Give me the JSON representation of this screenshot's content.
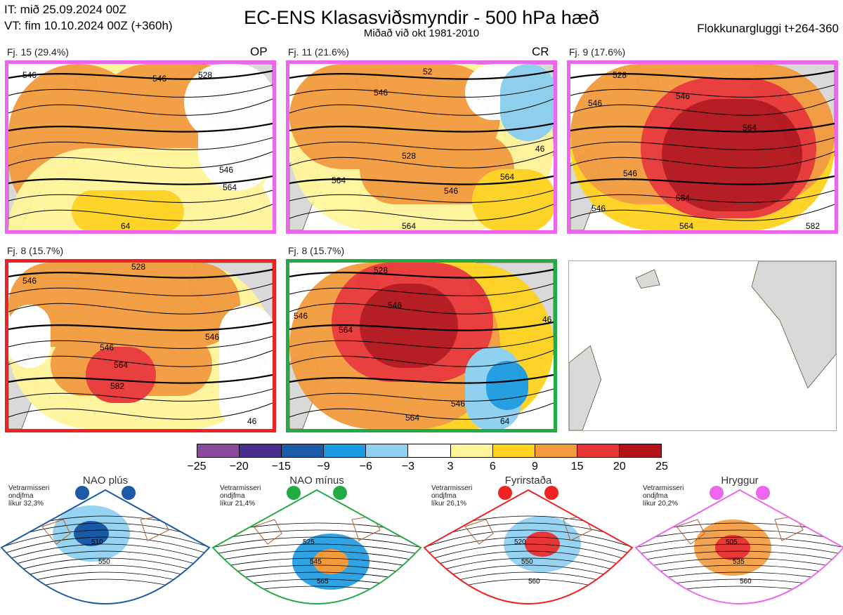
{
  "header": {
    "it_line": "IT: mið 25.09.2024 00Z",
    "vt_line": "VT: fim 10.10.2024 00Z  (+360h)",
    "title": "EC-ENS Klasasviðsmyndir - 500 hPa hæð",
    "subtitle": "Miðað við okt 1981-2010",
    "window": "Flokkunargluggi t+264-360"
  },
  "panels": [
    {
      "label": "Fj. 15 (29.4%)",
      "tag": "OP",
      "border": "#ee66ee",
      "contour_labels": [
        "546",
        "528",
        "546",
        "564",
        "64",
        "546"
      ]
    },
    {
      "label": "Fj. 11 (21.6%)",
      "tag": "CR",
      "border": "#ee66ee",
      "contour_labels": [
        "564",
        "528",
        "546",
        "564",
        "564",
        "546",
        "52",
        "46"
      ]
    },
    {
      "label": "Fj. 9 (17.6%)",
      "tag": "",
      "border": "#ee66ee",
      "contour_labels": [
        "546",
        "564",
        "546",
        "564",
        "582",
        "546",
        "564",
        "528",
        "546"
      ]
    },
    {
      "label": "Fj. 8 (15.7%)",
      "tag": "",
      "border": "#ee2222",
      "contour_labels": [
        "546",
        "564",
        "582",
        "528",
        "546",
        "546",
        "46"
      ]
    },
    {
      "label": "Fj. 8 (15.7%)",
      "tag": "",
      "border": "#22aa44",
      "contour_labels": [
        "546",
        "564",
        "546",
        "564",
        "546",
        "64",
        "528",
        "46"
      ]
    },
    {
      "label": "",
      "tag": "",
      "border": "#aaaaaa",
      "contour_labels": []
    }
  ],
  "colorbar": {
    "colors": [
      "#8b4a9c",
      "#4a2e8e",
      "#1a5aa6",
      "#1a9ae0",
      "#8ccff0",
      "#ffffff",
      "#fff59a",
      "#ffd21e",
      "#f39a3c",
      "#e83535",
      "#b3121b"
    ],
    "ticks": [
      "−25",
      "−20",
      "−15",
      "−9",
      "−6",
      "−3",
      "3",
      "6",
      "9",
      "15",
      "20",
      "25"
    ]
  },
  "regimes": [
    {
      "name": "NAO plús",
      "info": [
        "Vetrarmisseri",
        "ondjfma",
        "líkur 32,3%"
      ],
      "color": "#1a5aa6",
      "labels": [
        "510",
        "550"
      ]
    },
    {
      "name": "NAO mínus",
      "info": [
        "Vetrarmisseri",
        "ondjfma",
        "líkur 21,4%"
      ],
      "color": "#22aa44",
      "labels": [
        "525",
        "545",
        "565"
      ]
    },
    {
      "name": "Fyrirstaða",
      "info": [
        "Vetrarmisseri",
        "ondjfma",
        "líkur 26,1%"
      ],
      "color": "#ee2222",
      "labels": [
        "520",
        "550",
        "560"
      ]
    },
    {
      "name": "Hryggur",
      "info": [
        "Vetrarmisseri",
        "ondjfma",
        "líkur 20,2%"
      ],
      "color": "#ee66ee",
      "labels": [
        "505",
        "535",
        "560"
      ]
    }
  ]
}
